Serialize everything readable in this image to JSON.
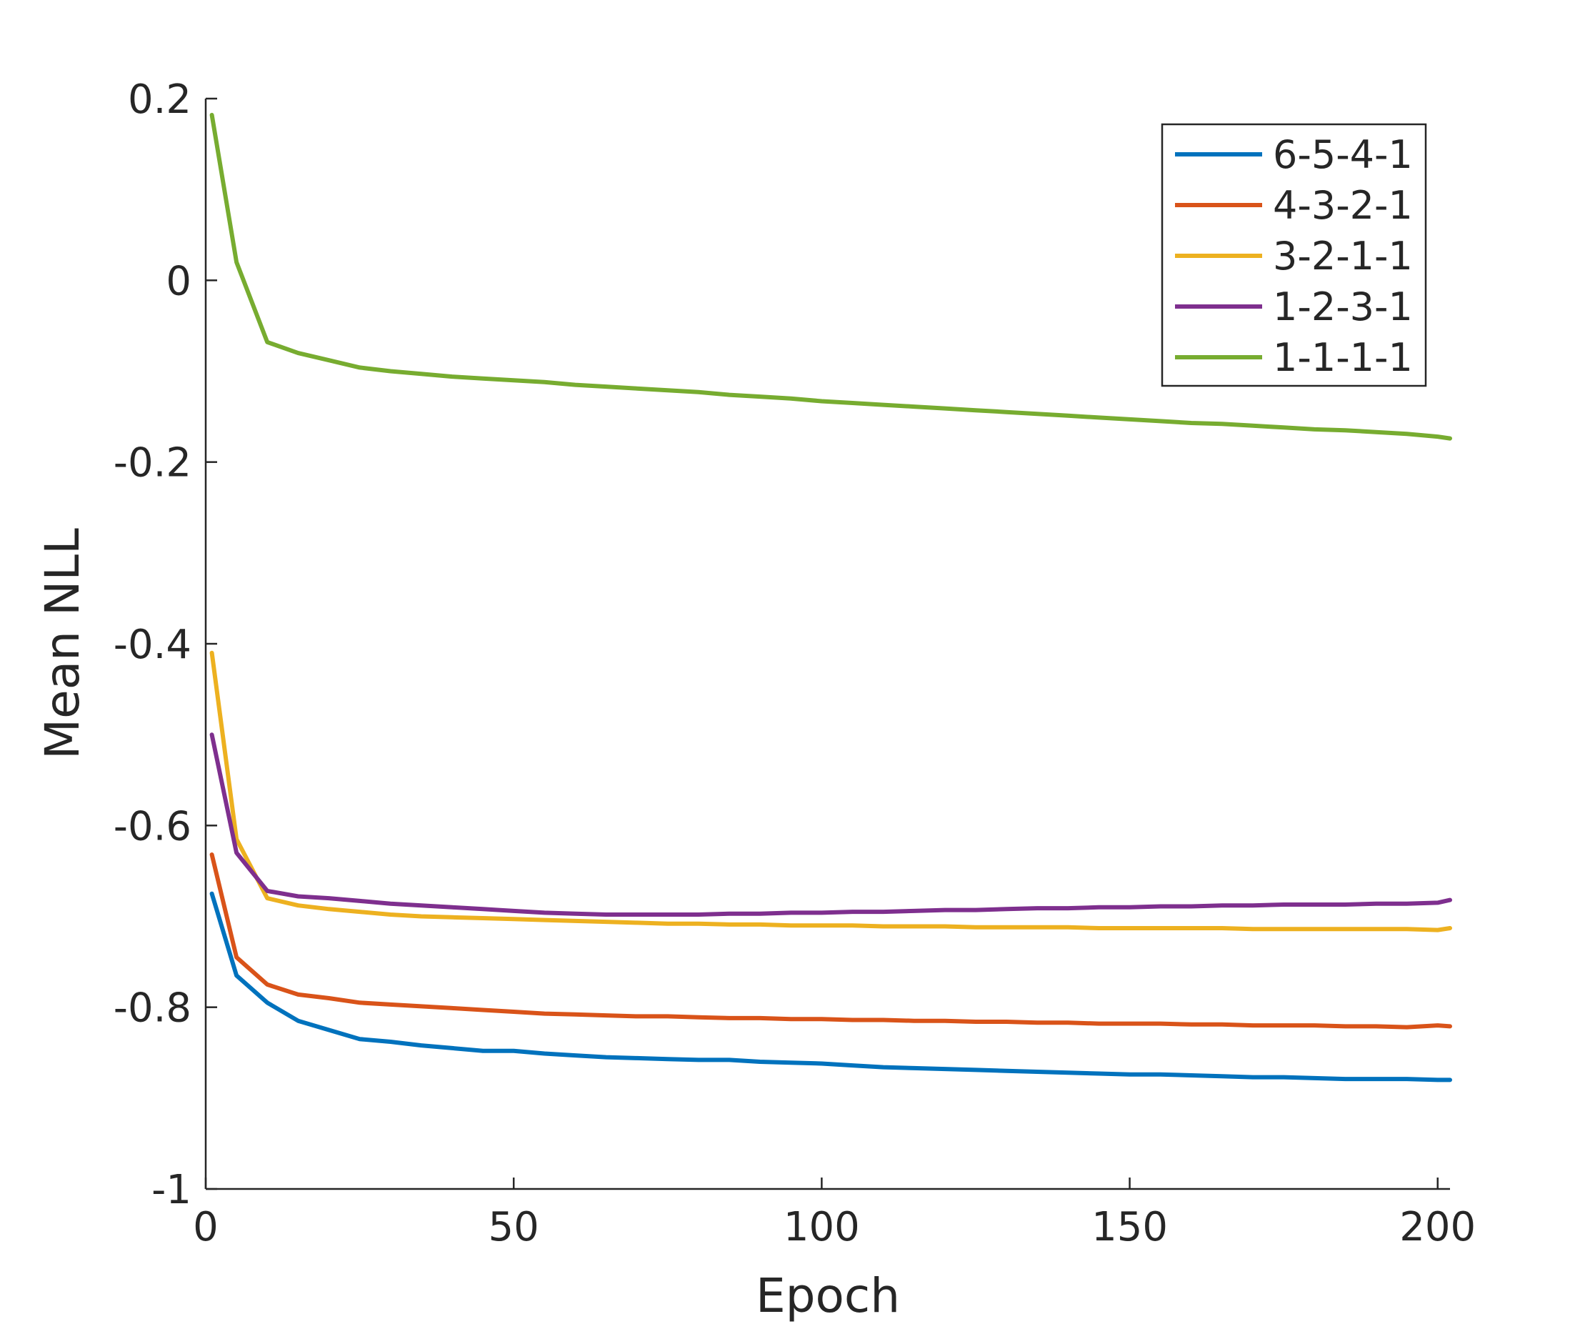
{
  "chart_data": {
    "type": "line",
    "xlabel": "Epoch",
    "ylabel": "Mean NLL",
    "xlim": [
      0,
      202
    ],
    "ylim": [
      -1,
      0.2
    ],
    "xticks": [
      0,
      50,
      100,
      150,
      200
    ],
    "xtick_labels": [
      "0",
      "50",
      "100",
      "150",
      "200"
    ],
    "yticks": [
      -1,
      -0.8,
      -0.6,
      -0.4,
      -0.2,
      0,
      0.2
    ],
    "ytick_labels": [
      "-1",
      "-0.8",
      "-0.6",
      "-0.4",
      "-0.2",
      "0",
      "0.2"
    ],
    "grid": false,
    "legend_position": "top-right",
    "x": [
      1,
      5,
      10,
      15,
      20,
      25,
      30,
      35,
      40,
      45,
      50,
      55,
      60,
      65,
      70,
      75,
      80,
      85,
      90,
      95,
      100,
      105,
      110,
      115,
      120,
      125,
      130,
      135,
      140,
      145,
      150,
      155,
      160,
      165,
      170,
      175,
      180,
      185,
      190,
      195,
      200,
      202
    ],
    "series": [
      {
        "name": "6-5-4-1",
        "color": "#0072BD",
        "values": [
          -0.675,
          -0.765,
          -0.795,
          -0.815,
          -0.825,
          -0.835,
          -0.838,
          -0.842,
          -0.845,
          -0.848,
          -0.848,
          -0.851,
          -0.853,
          -0.855,
          -0.856,
          -0.857,
          -0.858,
          -0.858,
          -0.86,
          -0.861,
          -0.862,
          -0.864,
          -0.866,
          -0.867,
          -0.868,
          -0.869,
          -0.87,
          -0.871,
          -0.872,
          -0.873,
          -0.874,
          -0.874,
          -0.875,
          -0.876,
          -0.877,
          -0.877,
          -0.878,
          -0.879,
          -0.879,
          -0.879,
          -0.88,
          -0.88
        ]
      },
      {
        "name": "4-3-2-1",
        "color": "#D95319",
        "values": [
          -0.632,
          -0.745,
          -0.775,
          -0.786,
          -0.79,
          -0.795,
          -0.797,
          -0.799,
          -0.801,
          -0.803,
          -0.805,
          -0.807,
          -0.808,
          -0.809,
          -0.81,
          -0.81,
          -0.811,
          -0.812,
          -0.812,
          -0.813,
          -0.813,
          -0.814,
          -0.814,
          -0.815,
          -0.815,
          -0.816,
          -0.816,
          -0.817,
          -0.817,
          -0.818,
          -0.818,
          -0.818,
          -0.819,
          -0.819,
          -0.82,
          -0.82,
          -0.82,
          -0.821,
          -0.821,
          -0.822,
          -0.82,
          -0.821
        ]
      },
      {
        "name": "3-2-1-1",
        "color": "#EDB120",
        "values": [
          -0.41,
          -0.615,
          -0.68,
          -0.688,
          -0.692,
          -0.695,
          -0.698,
          -0.7,
          -0.701,
          -0.702,
          -0.703,
          -0.704,
          -0.705,
          -0.706,
          -0.707,
          -0.708,
          -0.708,
          -0.709,
          -0.709,
          -0.71,
          -0.71,
          -0.71,
          -0.711,
          -0.711,
          -0.711,
          -0.712,
          -0.712,
          -0.712,
          -0.712,
          -0.713,
          -0.713,
          -0.713,
          -0.713,
          -0.713,
          -0.714,
          -0.714,
          -0.714,
          -0.714,
          -0.714,
          -0.714,
          -0.715,
          -0.713
        ]
      },
      {
        "name": "1-2-3-1",
        "color": "#7E2F8E",
        "values": [
          -0.5,
          -0.63,
          -0.672,
          -0.678,
          -0.68,
          -0.683,
          -0.686,
          -0.688,
          -0.69,
          -0.692,
          -0.694,
          -0.696,
          -0.697,
          -0.698,
          -0.698,
          -0.698,
          -0.698,
          -0.697,
          -0.697,
          -0.696,
          -0.696,
          -0.695,
          -0.695,
          -0.694,
          -0.693,
          -0.693,
          -0.692,
          -0.691,
          -0.691,
          -0.69,
          -0.69,
          -0.689,
          -0.689,
          -0.688,
          -0.688,
          -0.687,
          -0.687,
          -0.687,
          -0.686,
          -0.686,
          -0.685,
          -0.682
        ]
      },
      {
        "name": "1-1-1-1",
        "color": "#77AC30",
        "values": [
          0.182,
          0.02,
          -0.068,
          -0.08,
          -0.088,
          -0.096,
          -0.1,
          -0.103,
          -0.106,
          -0.108,
          -0.11,
          -0.112,
          -0.115,
          -0.117,
          -0.119,
          -0.121,
          -0.123,
          -0.126,
          -0.128,
          -0.13,
          -0.133,
          -0.135,
          -0.137,
          -0.139,
          -0.141,
          -0.143,
          -0.145,
          -0.147,
          -0.149,
          -0.151,
          -0.153,
          -0.155,
          -0.157,
          -0.158,
          -0.16,
          -0.162,
          -0.164,
          -0.165,
          -0.167,
          -0.169,
          -0.172,
          -0.174
        ]
      }
    ]
  }
}
